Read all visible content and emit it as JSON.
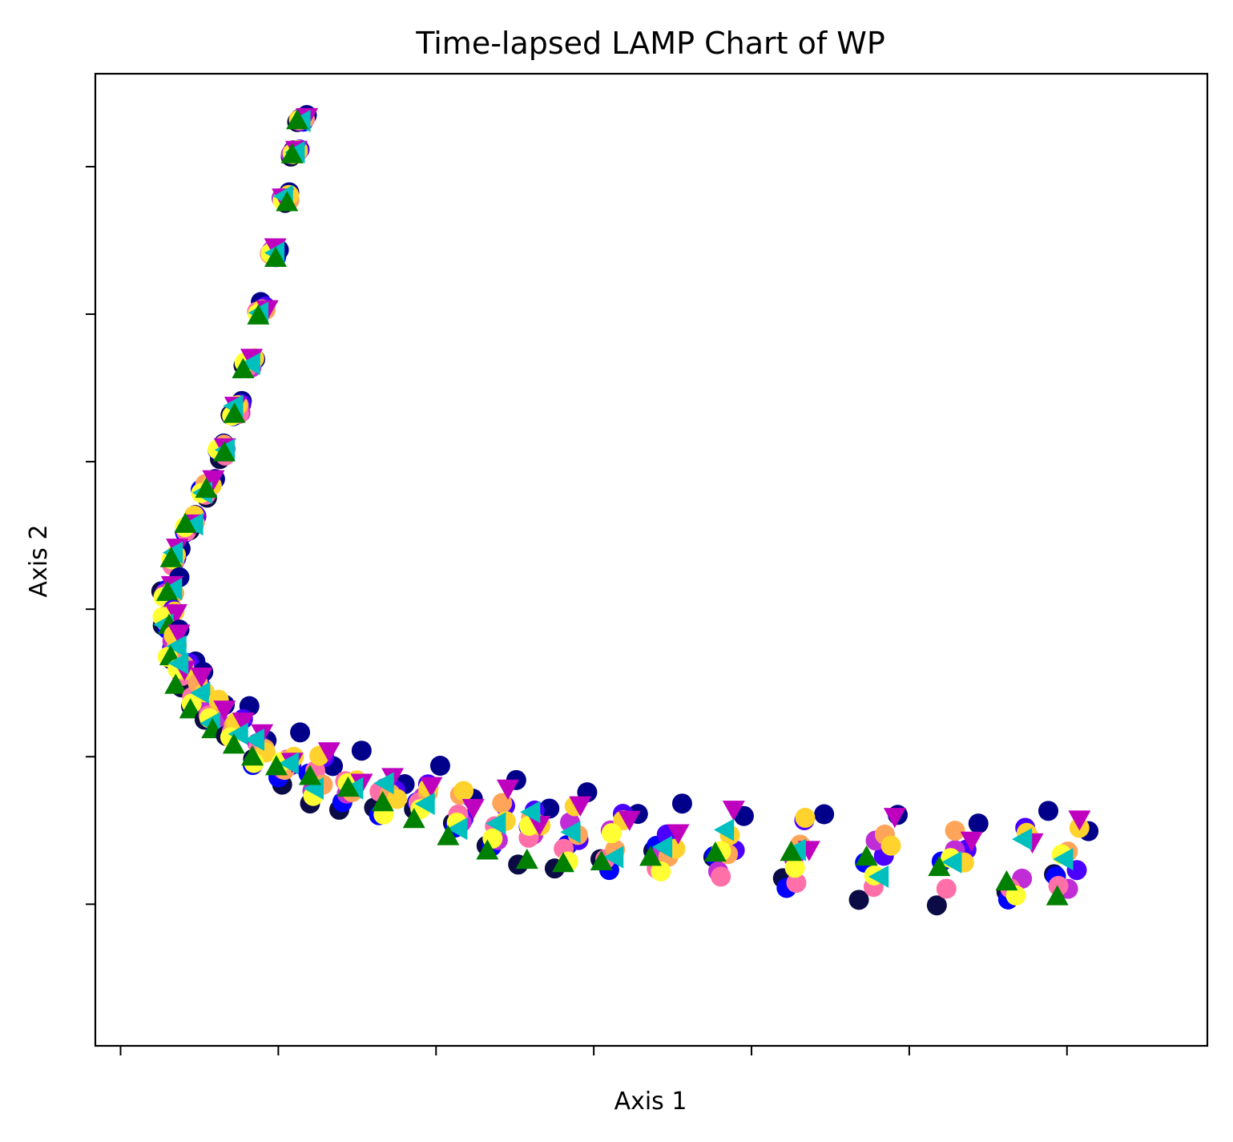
{
  "chart_data": {
    "type": "scatter",
    "title": "Time-lapsed LAMP Chart of WP",
    "xlabel": "Axis 1",
    "ylabel": "Axis 2",
    "xlim": [
      -0.16,
      6.89
    ],
    "ylim": [
      -0.96,
      5.63
    ],
    "xticks": [
      0,
      1,
      2,
      3,
      4,
      5,
      6
    ],
    "yticks": [
      0,
      1,
      2,
      3,
      4,
      5
    ],
    "tick_labels_visible": false,
    "grid": false,
    "legend": false,
    "curve": {
      "description": "points lie in columns along a curve; each column spreads vertically over time",
      "knots": [
        [
          1.15,
          5.32
        ],
        [
          0.75,
          3.4
        ],
        [
          0.3,
          2.0
        ],
        [
          0.8,
          1.1
        ],
        [
          2.0,
          0.65
        ],
        [
          3.5,
          0.4
        ],
        [
          6.0,
          0.28
        ]
      ]
    },
    "series": [
      {
        "marker": "circle",
        "color": "#0b0b46",
        "offset": -0.2
      },
      {
        "marker": "circle",
        "color": "#0000ff",
        "offset": -0.12
      },
      {
        "marker": "circle",
        "color": "#00008b",
        "offset": 0.3
      },
      {
        "marker": "circle",
        "color": "#4b00ff",
        "offset": 0.1
      },
      {
        "marker": "circle",
        "color": "#c02cd6",
        "offset": -0.03
      },
      {
        "marker": "circle",
        "color": "#ff6fa8",
        "offset": -0.08
      },
      {
        "marker": "circle",
        "color": "#ffa559",
        "offset": 0.05
      },
      {
        "marker": "circle",
        "color": "#ffd22e",
        "offset": 0.12
      },
      {
        "marker": "circle",
        "color": "#ffff33",
        "offset": -0.1
      },
      {
        "marker": "triangle-down",
        "color": "#bf00bf",
        "offset": 0.18
      },
      {
        "marker": "triangle-left",
        "color": "#00bfbf",
        "offset": 0.0
      },
      {
        "marker": "triangle-up",
        "color": "#008000",
        "offset": -0.15
      }
    ],
    "columns": 36
  }
}
